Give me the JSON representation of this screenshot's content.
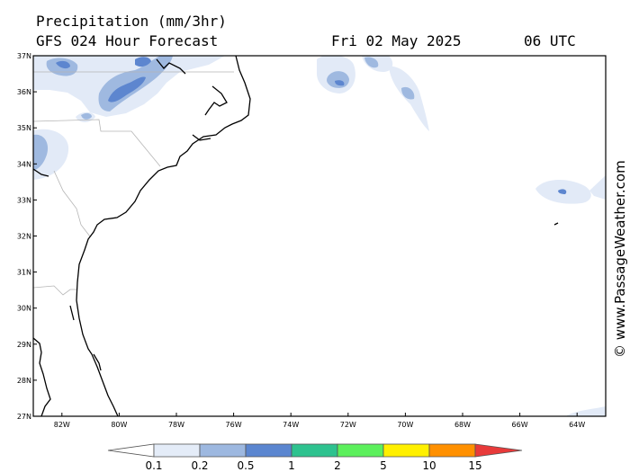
{
  "header": {
    "title": "Precipitation (mm/3hr)",
    "subtitle": "GFS 024 Hour Forecast",
    "date": "Fri 02 May 2025",
    "time": "06 UTC"
  },
  "credit": "© www.PassageWeather.com",
  "map": {
    "lat_labels": [
      "37N",
      "36N",
      "35N",
      "34N",
      "33N",
      "32N",
      "31N",
      "30N",
      "29N",
      "28N",
      "27N"
    ],
    "lon_labels": [
      "82W",
      "80W",
      "78W",
      "76W",
      "74W",
      "72W",
      "70W",
      "68W",
      "66W",
      "64W"
    ],
    "lat_range": [
      27,
      37
    ],
    "lon_range": [
      -83,
      -63
    ]
  },
  "legend": {
    "labels": [
      "0.1",
      "0.2",
      "0.5",
      "1",
      "2",
      "5",
      "10",
      "15"
    ],
    "colors": [
      "#ffffff",
      "#e4ecf8",
      "#9db8e0",
      "#5b86d0",
      "#2ec28f",
      "#5cf05c",
      "#fff000",
      "#ff9000",
      "#e83a3a"
    ]
  }
}
